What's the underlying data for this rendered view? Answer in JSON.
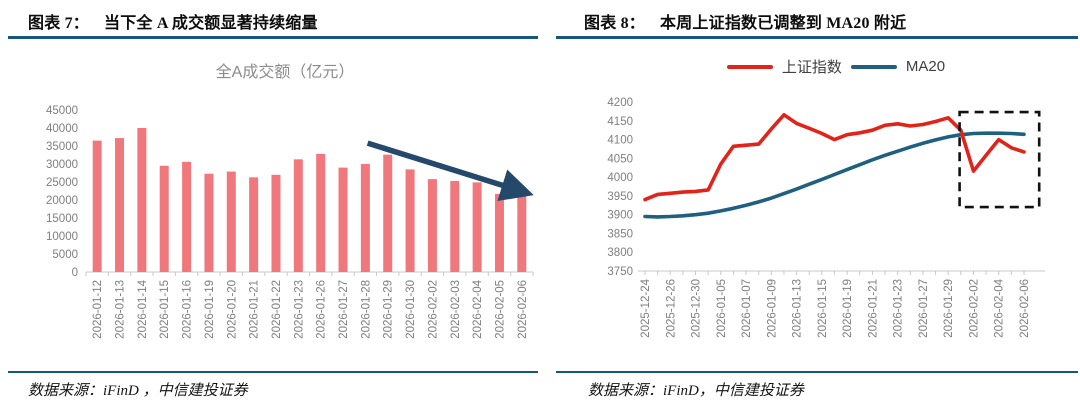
{
  "figure7": {
    "header_label": "图表 7：",
    "header_title": "当下全 A 成交额显著持续缩量",
    "source": "数据来源：iFinD ，中信建投证券"
  },
  "figure8": {
    "header_label": "图表 8：",
    "header_title": "本周上证指数已调整到 MA20 附近",
    "source": "数据来源：iFinD，中信建投证券"
  },
  "colors": {
    "rule_blue": "#18567F",
    "bar_pink": "#F0787C",
    "index_red": "#E2231A",
    "ma20_blue": "#1F6080",
    "arrow_navy": "#25496B",
    "tick_gray": "#7F7F7F"
  },
  "chart_data": [
    {
      "type": "bar",
      "title": "全A成交额（亿元）",
      "categories": [
        "2026-01-12",
        "2026-01-13",
        "2026-01-14",
        "2026-01-15",
        "2026-01-16",
        "2026-01-19",
        "2026-01-20",
        "2026-01-21",
        "2026-01-22",
        "2026-01-23",
        "2026-01-26",
        "2026-01-27",
        "2026-01-28",
        "2026-01-29",
        "2026-01-30",
        "2026-02-02",
        "2026-02-03",
        "2026-02-04",
        "2026-02-05",
        "2026-02-06"
      ],
      "values": [
        36500,
        37200,
        40000,
        29500,
        30600,
        27300,
        27900,
        26300,
        27000,
        31300,
        32800,
        29000,
        30000,
        32600,
        28500,
        25800,
        25300,
        24900,
        21700,
        21200
      ],
      "xlabel": "",
      "ylabel": "",
      "ylim": [
        0,
        45000
      ],
      "ytick_step": 5000,
      "grid": false,
      "legend": "none",
      "bar_color": "#F0787C",
      "annotation": {
        "type": "trend-arrow",
        "direction": "down",
        "color": "#25496B",
        "from_index": 12.1,
        "from_value": 35800,
        "to_index": 19.3,
        "to_value": 21800
      }
    },
    {
      "type": "line",
      "title": "",
      "x": [
        "2025-12-24",
        "2025-12-25",
        "2025-12-26",
        "2025-12-29",
        "2025-12-30",
        "2025-12-31",
        "2026-01-05",
        "2026-01-06",
        "2026-01-07",
        "2026-01-08",
        "2026-01-09",
        "2026-01-12",
        "2026-01-13",
        "2026-01-14",
        "2026-01-15",
        "2026-01-16",
        "2026-01-19",
        "2026-01-20",
        "2026-01-21",
        "2026-01-22",
        "2026-01-23",
        "2026-01-26",
        "2026-01-27",
        "2026-01-28",
        "2026-01-29",
        "2026-01-30",
        "2026-02-02",
        "2026-02-03",
        "2026-02-04",
        "2026-02-05",
        "2026-02-06"
      ],
      "x_label_every": 2,
      "ylim": [
        3750,
        4200
      ],
      "ytick_step": 50,
      "grid": false,
      "legend_position": "top",
      "series": [
        {
          "name": "上证指数",
          "color": "#E2231A",
          "values": [
            3940,
            3954,
            3957,
            3960,
            3962,
            3966,
            4035,
            4082,
            4085,
            4088,
            4128,
            4166,
            4143,
            4130,
            4116,
            4100,
            4113,
            4118,
            4125,
            4138,
            4142,
            4136,
            4140,
            4148,
            4158,
            4125,
            4016,
            4058,
            4100,
            4078,
            4067
          ]
        },
        {
          "name": "MA20",
          "color": "#1F6080",
          "values": [
            3895,
            3894,
            3895,
            3897,
            3900,
            3904,
            3910,
            3917,
            3925,
            3934,
            3944,
            3956,
            3968,
            3981,
            3994,
            4007,
            4020,
            4033,
            4046,
            4058,
            4069,
            4080,
            4090,
            4099,
            4107,
            4113,
            4116,
            4117,
            4117,
            4116,
            4114
          ]
        }
      ],
      "annotation": {
        "type": "dashed-box",
        "color": "#111111",
        "from_index": 24.9,
        "to_index": 31.2,
        "from_value": 3920,
        "to_value": 4173
      }
    }
  ]
}
